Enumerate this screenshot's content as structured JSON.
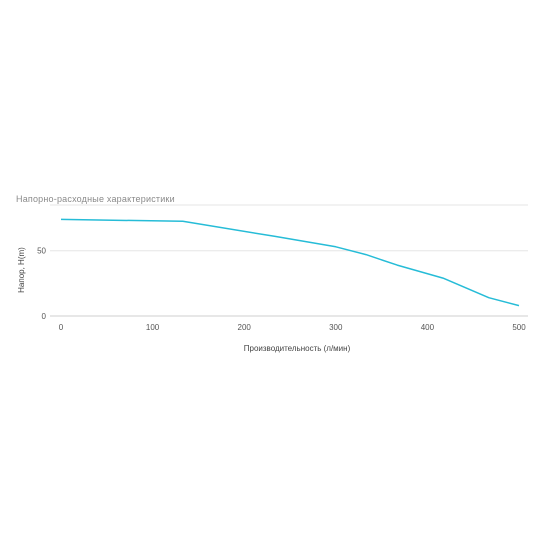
{
  "chart_data": {
    "type": "line",
    "title": "Напорно-расходные характеристики",
    "xlabel": "Производительность (л/мин)",
    "ylabel": "Напор, Н(m)",
    "xlim": [
      0,
      500
    ],
    "ylim": [
      0,
      85
    ],
    "xticks": [
      0,
      100,
      200,
      300,
      400,
      500
    ],
    "yticks": [
      0,
      50
    ],
    "grid": true,
    "colors": {
      "series": "#26bcd7"
    },
    "series": [
      {
        "x": [
          0,
          133,
          233,
          300,
          333,
          367,
          417,
          467,
          500
        ],
        "y": [
          74,
          72.5,
          61,
          53,
          47,
          39,
          29,
          14,
          8
        ]
      }
    ]
  }
}
